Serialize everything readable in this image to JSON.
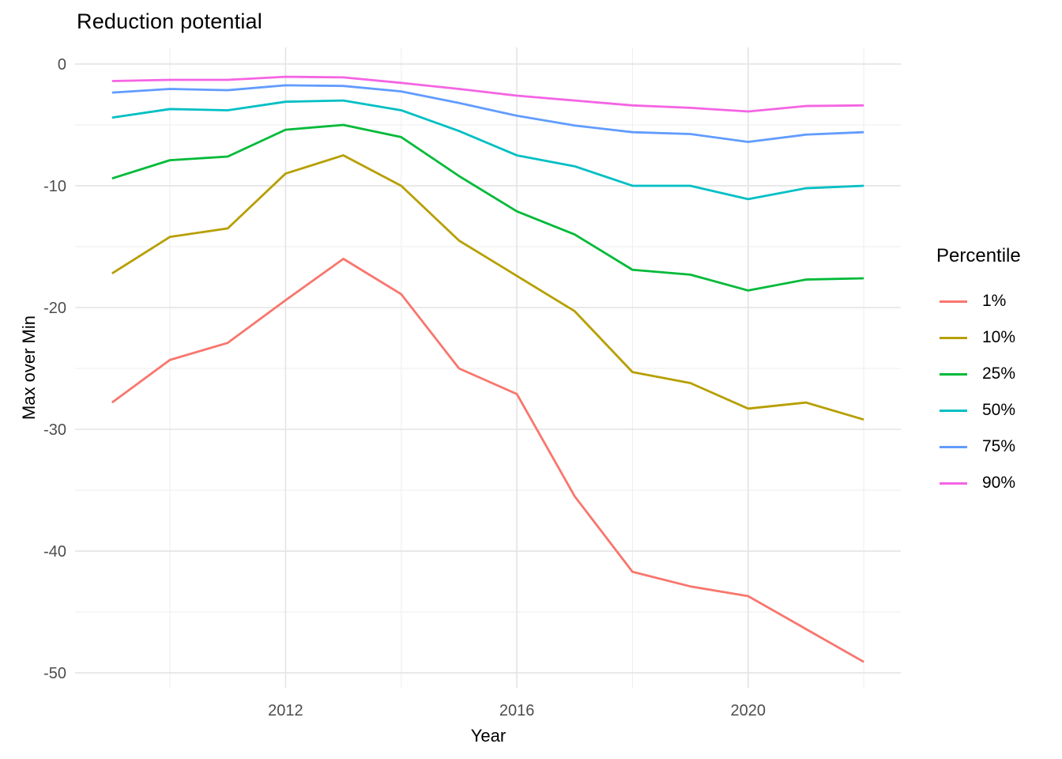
{
  "chart_data": {
    "type": "line",
    "title": "Reduction potential",
    "xlabel": "Year",
    "ylabel": "Max over Min",
    "legend": {
      "title": "Percentile",
      "position": "right"
    },
    "grid": true,
    "x": [
      2009,
      2010,
      2011,
      2012,
      2013,
      2014,
      2015,
      2016,
      2017,
      2018,
      2019,
      2020,
      2021,
      2022
    ],
    "series": [
      {
        "name": "1%",
        "color": "#F8766D",
        "values": [
          -27.8,
          -24.3,
          -22.9,
          -19.4,
          -16.0,
          -18.9,
          -25.0,
          -27.1,
          -35.5,
          -41.7,
          -42.9,
          -43.7,
          -46.4,
          -49.1
        ]
      },
      {
        "name": "10%",
        "color": "#B79F00",
        "values": [
          -17.2,
          -14.2,
          -13.5,
          -9.0,
          -7.5,
          -10.0,
          -14.5,
          -17.4,
          -20.3,
          -25.3,
          -26.2,
          -28.3,
          -27.8,
          -29.2
        ]
      },
      {
        "name": "25%",
        "color": "#00BA38",
        "values": [
          -9.4,
          -7.9,
          -7.6,
          -5.4,
          -5.0,
          -6.0,
          -9.2,
          -12.1,
          -14.0,
          -16.9,
          -17.3,
          -18.6,
          -17.7,
          -17.6
        ]
      },
      {
        "name": "50%",
        "color": "#00BFC4",
        "values": [
          -4.4,
          -3.7,
          -3.8,
          -3.1,
          -3.0,
          -3.8,
          -5.5,
          -7.5,
          -8.4,
          -10.0,
          -10.0,
          -11.1,
          -10.2,
          -10.0
        ]
      },
      {
        "name": "75%",
        "color": "#619CFF",
        "values": [
          -2.35,
          -2.05,
          -2.15,
          -1.75,
          -1.8,
          -2.25,
          -3.2,
          -4.25,
          -5.05,
          -5.6,
          -5.75,
          -6.4,
          -5.8,
          -5.6
        ]
      },
      {
        "name": "90%",
        "color": "#F564E3",
        "values": [
          -1.4,
          -1.3,
          -1.3,
          -1.05,
          -1.1,
          -1.55,
          -2.05,
          -2.6,
          -3.0,
          -3.4,
          -3.6,
          -3.9,
          -3.45,
          -3.4
        ]
      }
    ],
    "axes": {
      "x": {
        "range": [
          2008.36,
          2022.64
        ],
        "ticks": [
          2012,
          2016,
          2020
        ],
        "tick_labels": [
          "2012",
          "2016",
          "2020"
        ],
        "minor_ticks": [
          2010,
          2014,
          2018,
          2022
        ]
      },
      "y": {
        "range": [
          -51.23,
          1.36
        ],
        "ticks": [
          0,
          -10,
          -20,
          -30,
          -40,
          -50
        ],
        "tick_labels": [
          "0",
          "-10",
          "-20",
          "-30",
          "-40",
          "-50"
        ],
        "minor_ticks": [
          -5,
          -15,
          -25,
          -35,
          -45
        ]
      }
    },
    "style": {
      "background": "#FFFFFF",
      "grid_major_color": "#E4E4E4",
      "grid_minor_color": "#EFEFEF",
      "tick_text_color": "#4D4D4D",
      "text_color": "#000000"
    }
  }
}
